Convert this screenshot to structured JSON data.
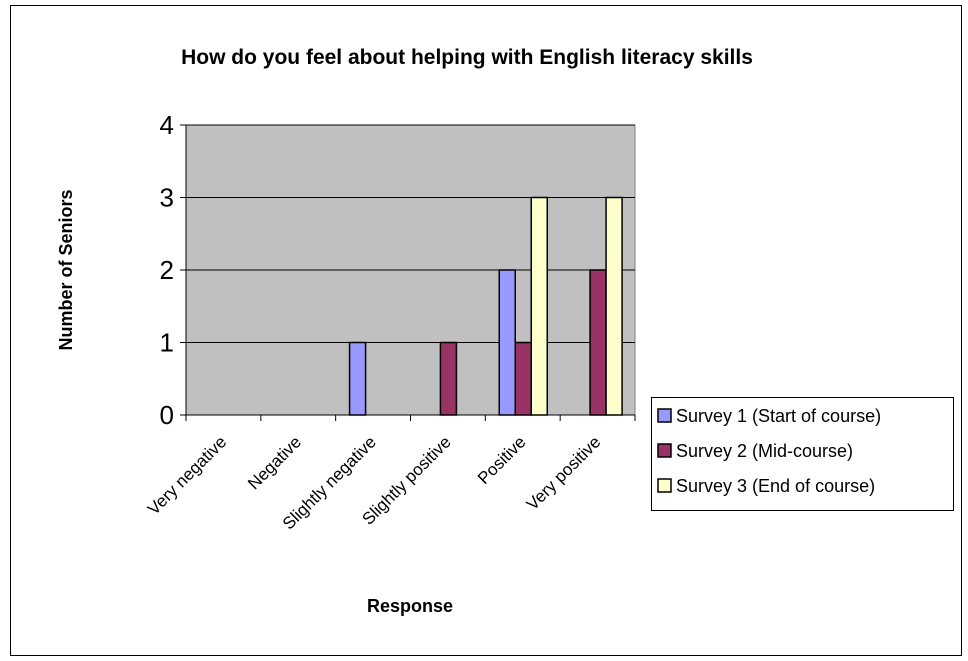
{
  "chart_data": {
    "type": "bar",
    "title": "How do you feel about helping with English literacy skills",
    "xlabel": "Response",
    "ylabel": "Number of Seniors",
    "categories": [
      "Very negative",
      "Negative",
      "Slightly negative",
      "Slightly positive",
      "Positive",
      "Very positive"
    ],
    "series": [
      {
        "name": "Survey 1 (Start of course)",
        "values": [
          0,
          0,
          1,
          0,
          2,
          0
        ],
        "color": "#9999FF"
      },
      {
        "name": "Survey 2 (Mid-course)",
        "values": [
          0,
          0,
          0,
          1,
          1,
          2
        ],
        "color": "#993366"
      },
      {
        "name": "Survey 3 (End of course)",
        "values": [
          0,
          0,
          0,
          0,
          3,
          3
        ],
        "color": "#FFFFCC"
      }
    ],
    "ylim": [
      0,
      4
    ],
    "yticks": [
      0,
      1,
      2,
      3,
      4
    ],
    "grid": true,
    "legend_position": "right",
    "plot_background": "#C0C0C0"
  }
}
